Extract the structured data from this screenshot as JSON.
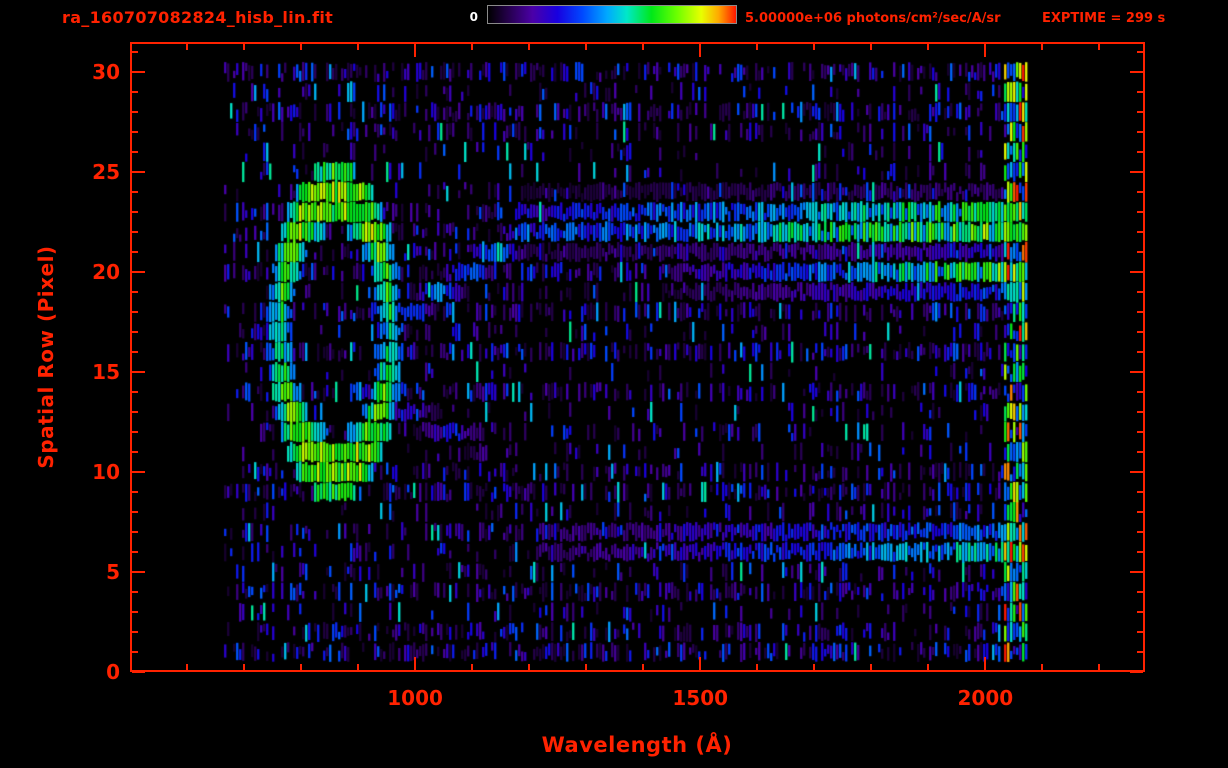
{
  "colors": {
    "accent_red": "#ff2200",
    "background": "#000000",
    "colorbar_min_label_color": "#ffffff",
    "colorbar_border": "#8a8a8a"
  },
  "header": {
    "title": "ra_160707082824_hisb_lin.fit",
    "colorbar_min_label": "0",
    "colorbar_max_label": "5.00000e+06 photons/cm²/sec/A/sr",
    "exptime_label": "EXPTIME = 299 s"
  },
  "axes": {
    "x_label": "Wavelength (Å)",
    "y_label": "Spatial Row (Pixel)",
    "x_ticks": [
      1000,
      1500,
      2000
    ],
    "x_minor_step": 100,
    "y_ticks": [
      0,
      5,
      10,
      15,
      20,
      25,
      30
    ],
    "y_minor_step": 1,
    "x_range": [
      500,
      2280
    ],
    "y_range": [
      0,
      31.5
    ]
  },
  "chart_data": {
    "type": "heatmap",
    "title": "ra_160707082824_hisb_lin.fit",
    "xlabel": "Wavelength (Å)",
    "ylabel": "Spatial Row (Pixel)",
    "x_range": [
      500,
      2280
    ],
    "y_range": [
      0,
      31.5
    ],
    "rows": 30,
    "data_x_extent": [
      665,
      2080
    ],
    "colorbar": {
      "min": 0,
      "max": 5000000,
      "units": "photons/cm²/sec/A/sr",
      "scale": "linear"
    },
    "exptime_seconds": 299,
    "seed": 1607,
    "colormap_stops": [
      [
        0.0,
        "#000000"
      ],
      [
        0.08,
        "#24004a"
      ],
      [
        0.18,
        "#4b00a8"
      ],
      [
        0.28,
        "#1800e0"
      ],
      [
        0.38,
        "#0048ff"
      ],
      [
        0.48,
        "#00a8ff"
      ],
      [
        0.56,
        "#00e8c8"
      ],
      [
        0.66,
        "#00e818"
      ],
      [
        0.76,
        "#6aff00"
      ],
      [
        0.86,
        "#e8ff00"
      ],
      [
        0.93,
        "#ffa800"
      ],
      [
        1.0,
        "#ff1800"
      ]
    ],
    "features": [
      {
        "id": "background-speckle",
        "type": "speckle",
        "x": [
          665,
          2080
        ],
        "rows": [
          1,
          30
        ],
        "density": 0.34,
        "intensity": [
          0.05,
          0.42
        ]
      },
      {
        "id": "aperture-ring",
        "type": "ring",
        "cx": 858,
        "cy": 17,
        "rx": 97,
        "ry": 6.8,
        "thickness": 0.24,
        "intensity": [
          0.5,
          0.95
        ]
      },
      {
        "id": "ring-upper-diagonal",
        "type": "segment",
        "from": [
          950,
          17.2
        ],
        "to": [
          1200,
          22.2
        ],
        "width": 1.1,
        "intensity": 0.5
      },
      {
        "id": "ring-lower-diagonal",
        "type": "segment",
        "from": [
          905,
          13.8
        ],
        "to": [
          1120,
          11.4
        ],
        "width": 0.9,
        "intensity": 0.32
      },
      {
        "id": "spectral-band-row-22",
        "type": "band",
        "x": [
          1185,
          2078
        ],
        "row": 22.4,
        "sigma": 0.85,
        "intensity": [
          0.38,
          0.88
        ]
      },
      {
        "id": "spectral-band-row-20",
        "type": "band",
        "x": [
          1430,
          2078
        ],
        "row": 19.9,
        "sigma": 0.75,
        "intensity": [
          0.14,
          0.82
        ]
      },
      {
        "id": "spectral-band-row-6",
        "type": "band",
        "x": [
          1210,
          2070
        ],
        "row": 6.4,
        "sigma": 0.65,
        "intensity": [
          0.15,
          0.72
        ]
      },
      {
        "id": "detector-edge-strip",
        "type": "vstrip",
        "x": [
          2028,
          2080
        ],
        "rows": [
          1,
          30
        ],
        "intensity": [
          0.3,
          1.0
        ]
      }
    ]
  }
}
